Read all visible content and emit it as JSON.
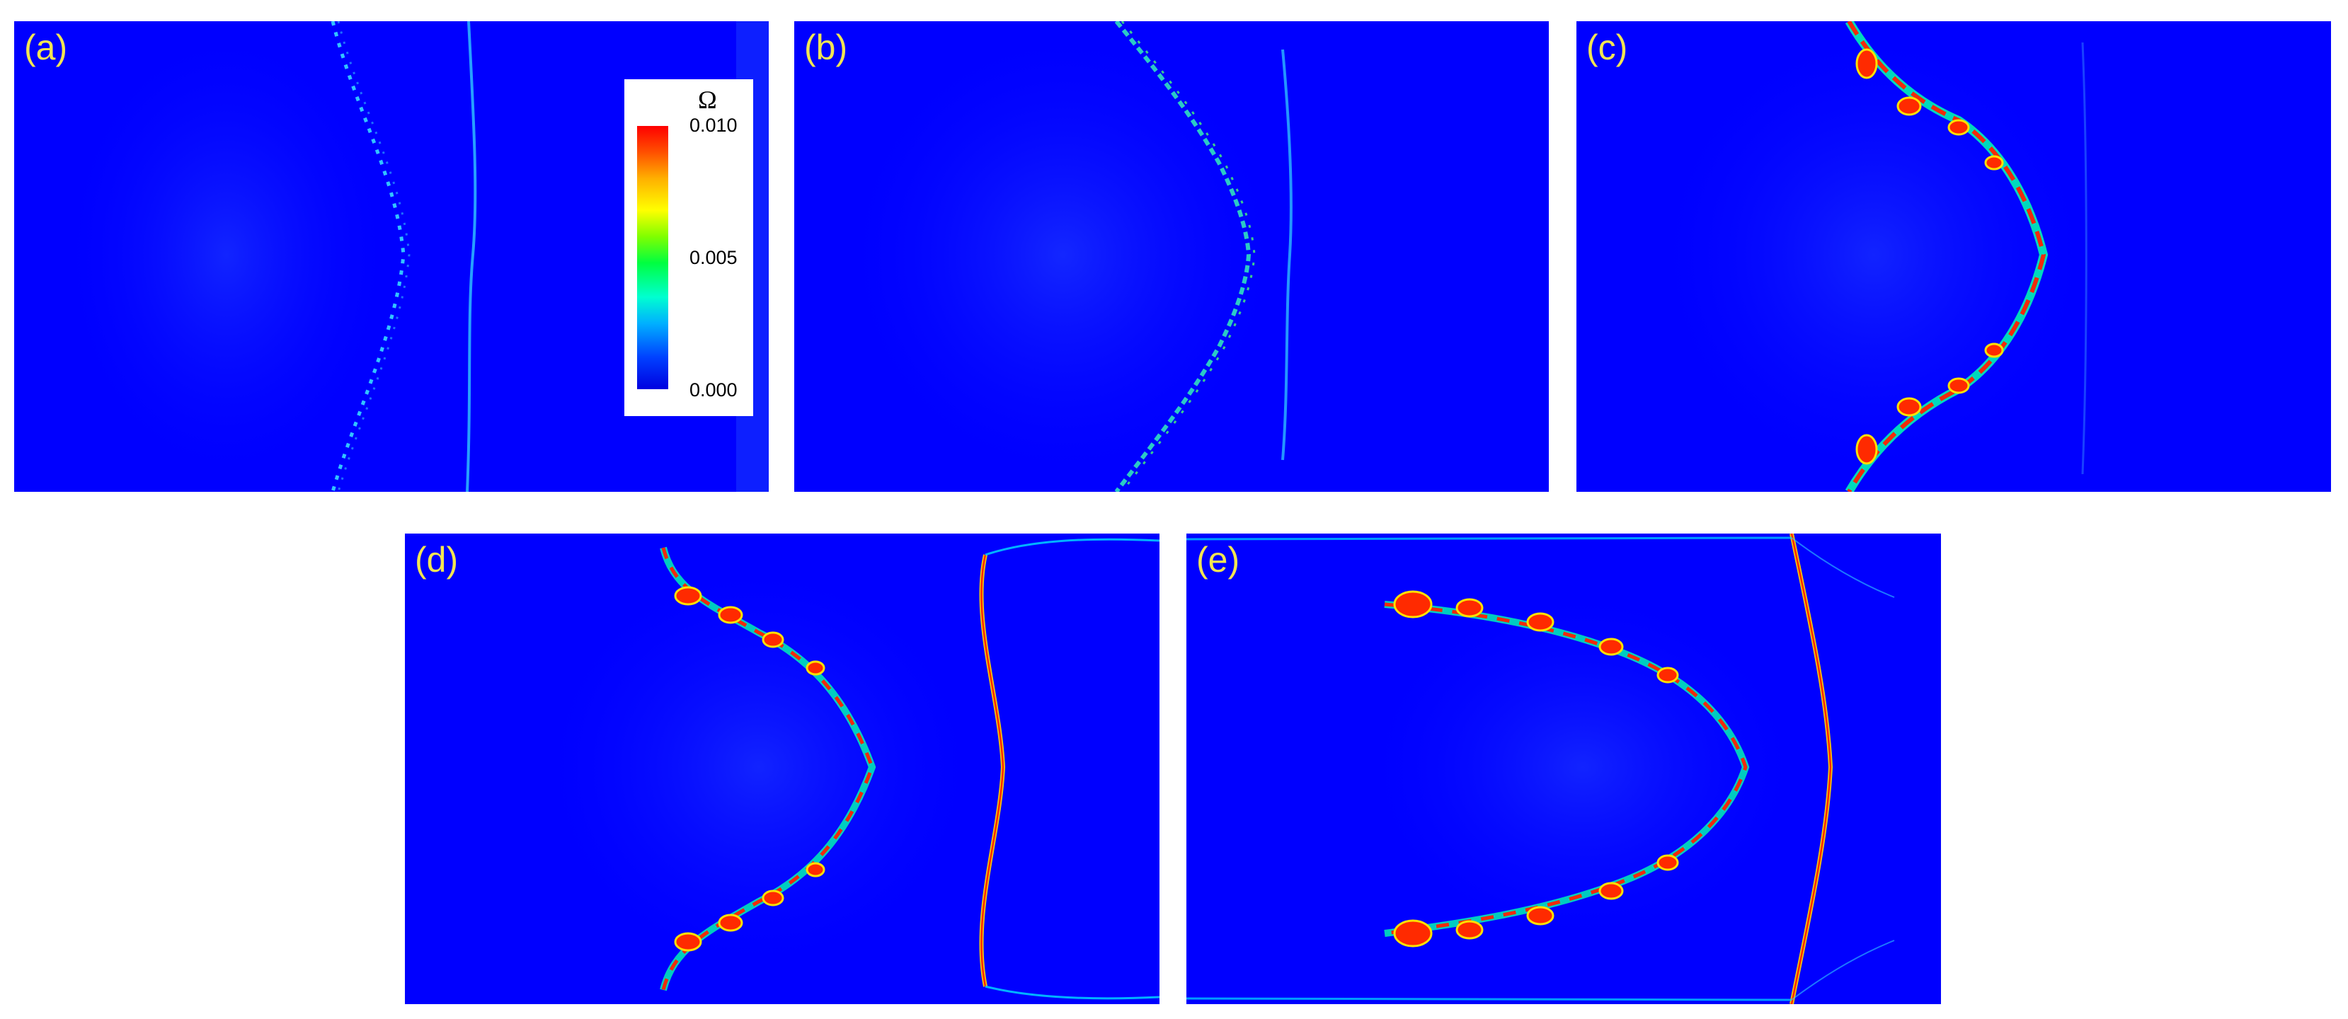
{
  "panels": [
    {
      "id": "a",
      "label": "(a)"
    },
    {
      "id": "b",
      "label": "(b)"
    },
    {
      "id": "c",
      "label": "(c)"
    },
    {
      "id": "d",
      "label": "(d)"
    },
    {
      "id": "e",
      "label": "(e)"
    }
  ],
  "colorbar": {
    "symbol": "Ω",
    "ticks": [
      "0.010",
      "0.005",
      "0.000"
    ],
    "colors": {
      "background": "#0000ff",
      "low": "#0000e0",
      "mid": "#00ff40",
      "high": "#ff0000",
      "label": "#f2e552"
    }
  }
}
